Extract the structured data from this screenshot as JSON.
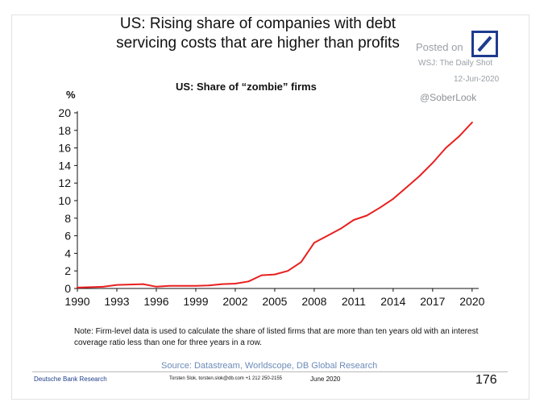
{
  "title": {
    "line1": "US: Rising share of companies with debt",
    "line2": "servicing costs that are higher than profits"
  },
  "watermark": {
    "posted": "Posted on",
    "source": "WSJ: The Daily Shot",
    "date": "12-Jun-2020",
    "handle": "@SoberLook"
  },
  "logo": {
    "name": "deutsche-bank-logo-icon",
    "color": "#1e3a8f"
  },
  "note": "Note: Firm-level data is used to calculate the share of listed firms that are more than ten years old with an interest coverage ratio less than one for three years in a row.",
  "source_text": "Source: Datastream, Worldscope, DB Global Research",
  "footer": {
    "publisher": "Deutsche Bank Research",
    "contact": "Torsten Slok, torsten.slok@db.com  +1 212 250-2155",
    "date": "June 2020",
    "page": "176"
  },
  "colors": {
    "line": "#e8201f",
    "axis": "#111111",
    "source": "#6b8bb8",
    "publisher": "#1f3f8c"
  },
  "chart_data": {
    "type": "line",
    "title": "US: Share of “zombie” firms",
    "ylabel": "%",
    "xlabel": "",
    "xlim": [
      1990,
      2020.5
    ],
    "ylim": [
      0,
      20
    ],
    "xticks": [
      1990,
      1993,
      1996,
      1999,
      2002,
      2005,
      2008,
      2011,
      2014,
      2017,
      2020
    ],
    "yticks": [
      0,
      2,
      4,
      6,
      8,
      10,
      12,
      14,
      16,
      18,
      20
    ],
    "grid": false,
    "legend": "none",
    "series": [
      {
        "x": [
          1990,
          1991,
          1992,
          1993,
          1994,
          1995,
          1996,
          1997,
          1998,
          1999,
          2000,
          2001,
          2002,
          2003,
          2004,
          2005,
          2006,
          2007,
          2008,
          2009,
          2010,
          2011,
          2012,
          2013,
          2014,
          2015,
          2016,
          2017,
          2018,
          2019,
          2020
        ],
        "y": [
          0.1,
          0.15,
          0.2,
          0.4,
          0.45,
          0.5,
          0.2,
          0.3,
          0.3,
          0.3,
          0.35,
          0.5,
          0.55,
          0.8,
          1.5,
          1.6,
          2.0,
          3.0,
          5.2,
          6.0,
          6.8,
          7.8,
          8.3,
          9.2,
          10.2,
          11.5,
          12.8,
          14.3,
          16.0,
          17.3,
          18.9
        ]
      }
    ]
  }
}
